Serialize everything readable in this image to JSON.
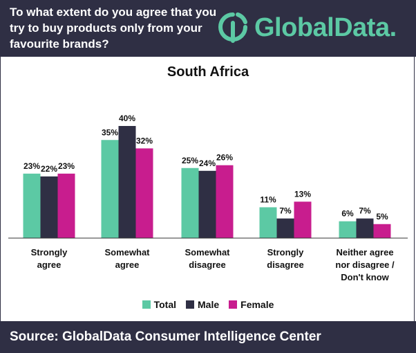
{
  "header": {
    "question": "To what extent do you agree that you try to buy products only from your favourite brands?",
    "brand": "GlobalData."
  },
  "footer": {
    "source": "Source: GlobalData Consumer Intelligence Center"
  },
  "colors": {
    "header_bg": "#2f2f44",
    "brand_green": "#5cc9a4",
    "total": "#5cc9a4",
    "male": "#2f2f44",
    "female": "#c81d8e"
  },
  "icons": {
    "logo": "globaldata-logo-icon"
  },
  "chart_data": {
    "type": "bar",
    "title": "South Africa",
    "categories": [
      [
        "Strongly",
        "agree"
      ],
      [
        "Somewhat",
        "agree"
      ],
      [
        "Somewhat",
        "disagree"
      ],
      [
        "Strongly",
        "disagree"
      ],
      [
        "Neither agree",
        "nor disagree /",
        "Don't know"
      ]
    ],
    "series": [
      {
        "name": "Total",
        "values": [
          23,
          35,
          25,
          11,
          6
        ],
        "labels": [
          "23%",
          "35%",
          "25%",
          "11%",
          "6%"
        ]
      },
      {
        "name": "Male",
        "values": [
          22,
          40,
          24,
          7,
          7
        ],
        "labels": [
          "22%",
          "40%",
          "24%",
          "7%",
          "7%"
        ]
      },
      {
        "name": "Female",
        "values": [
          23,
          32,
          26,
          13,
          5
        ],
        "labels": [
          "23%",
          "32%",
          "26%",
          "13%",
          "5%"
        ]
      }
    ],
    "ylim": [
      0,
      40
    ],
    "grid": false,
    "legend": "bottom-center"
  }
}
